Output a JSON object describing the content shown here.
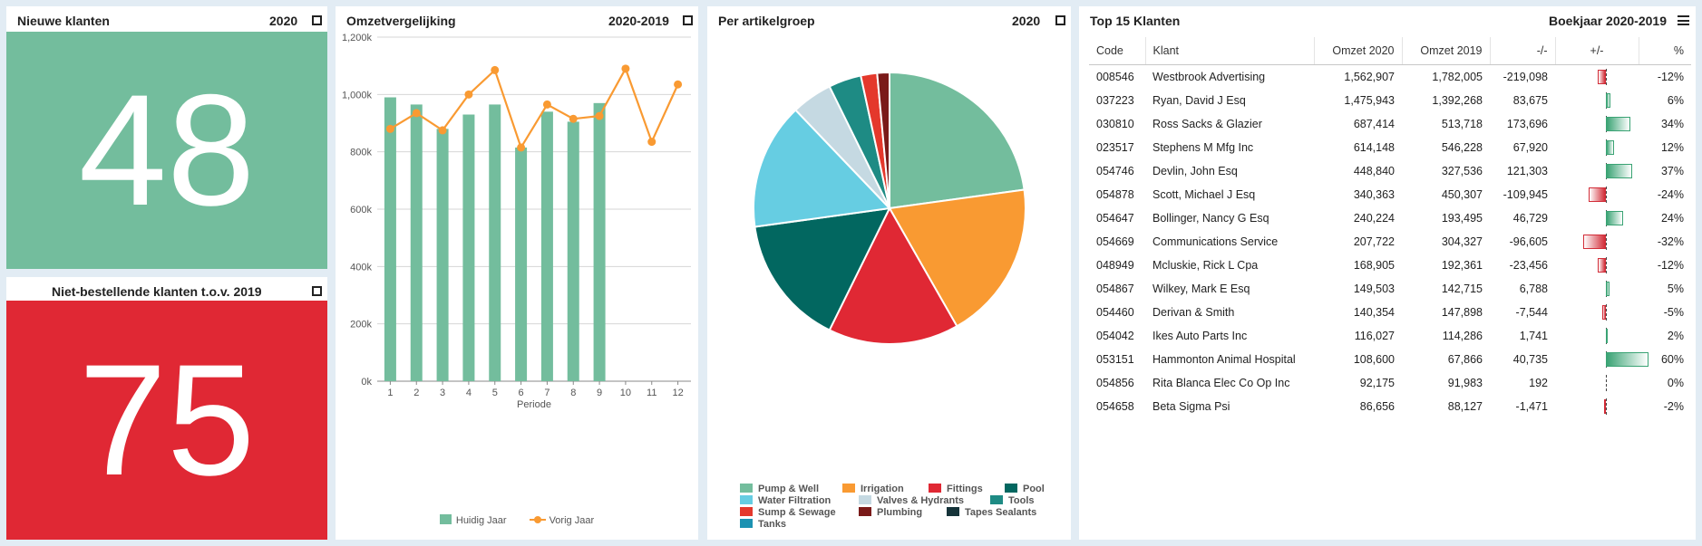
{
  "panel_new": {
    "title": "Nieuwe klanten",
    "year": "2020",
    "value": "48"
  },
  "panel_nonorder": {
    "title": "Niet-bestellende klanten t.o.v. 2019",
    "value": "75"
  },
  "panel_revenue": {
    "title": "Omzetvergelijking",
    "year": "2020-2019",
    "legend_current": "Huidig Jaar",
    "legend_previous": "Vorig Jaar"
  },
  "panel_pie": {
    "title": "Per artikelgroep",
    "year": "2020"
  },
  "panel_top": {
    "title": "Top 15 Klanten",
    "year": "Boekjaar 2020-2019",
    "columns": [
      "Code",
      "Klant",
      "Omzet 2020",
      "Omzet 2019",
      "-/-",
      "+/-",
      "%"
    ],
    "rows": [
      {
        "code": "008546",
        "name": "Westbrook Advertising",
        "o2020": "1,562,907",
        "o2019": "1,782,005",
        "diff": "-219,098",
        "pct": "-12%",
        "pct_value": -12
      },
      {
        "code": "037223",
        "name": "Ryan, David J Esq",
        "o2020": "1,475,943",
        "o2019": "1,392,268",
        "diff": "83,675",
        "pct": "6%",
        "pct_value": 6
      },
      {
        "code": "030810",
        "name": "Ross Sacks & Glazier",
        "o2020": "687,414",
        "o2019": "513,718",
        "diff": "173,696",
        "pct": "34%",
        "pct_value": 34
      },
      {
        "code": "023517",
        "name": "Stephens M Mfg Inc",
        "o2020": "614,148",
        "o2019": "546,228",
        "diff": "67,920",
        "pct": "12%",
        "pct_value": 12
      },
      {
        "code": "054746",
        "name": "Devlin, John Esq",
        "o2020": "448,840",
        "o2019": "327,536",
        "diff": "121,303",
        "pct": "37%",
        "pct_value": 37
      },
      {
        "code": "054878",
        "name": "Scott, Michael J Esq",
        "o2020": "340,363",
        "o2019": "450,307",
        "diff": "-109,945",
        "pct": "-24%",
        "pct_value": -24
      },
      {
        "code": "054647",
        "name": "Bollinger, Nancy G Esq",
        "o2020": "240,224",
        "o2019": "193,495",
        "diff": "46,729",
        "pct": "24%",
        "pct_value": 24
      },
      {
        "code": "054669",
        "name": "Communications Service",
        "o2020": "207,722",
        "o2019": "304,327",
        "diff": "-96,605",
        "pct": "-32%",
        "pct_value": -32
      },
      {
        "code": "048949",
        "name": "Mcluskie, Rick L Cpa",
        "o2020": "168,905",
        "o2019": "192,361",
        "diff": "-23,456",
        "pct": "-12%",
        "pct_value": -12
      },
      {
        "code": "054867",
        "name": "Wilkey, Mark E Esq",
        "o2020": "149,503",
        "o2019": "142,715",
        "diff": "6,788",
        "pct": "5%",
        "pct_value": 5
      },
      {
        "code": "054460",
        "name": "Derivan & Smith",
        "o2020": "140,354",
        "o2019": "147,898",
        "diff": "-7,544",
        "pct": "-5%",
        "pct_value": -5
      },
      {
        "code": "054042",
        "name": "Ikes Auto Parts Inc",
        "o2020": "116,027",
        "o2019": "114,286",
        "diff": "1,741",
        "pct": "2%",
        "pct_value": 2
      },
      {
        "code": "053151",
        "name": "Hammonton Animal Hospital",
        "o2020": "108,600",
        "o2019": "67,866",
        "diff": "40,735",
        "pct": "60%",
        "pct_value": 60
      },
      {
        "code": "054856",
        "name": "Rita Blanca Elec Co Op Inc",
        "o2020": "92,175",
        "o2019": "91,983",
        "diff": "192",
        "pct": "0%",
        "pct_value": 0
      },
      {
        "code": "054658",
        "name": "Beta Sigma Psi",
        "o2020": "86,656",
        "o2019": "88,127",
        "diff": "-1,471",
        "pct": "-2%",
        "pct_value": -2
      }
    ]
  },
  "colors": {
    "green": "#73bd9d",
    "red": "#e02834",
    "orange": "#f99a32",
    "positive": "#3aa374",
    "negative": "#d22d38"
  },
  "chart_data": [
    {
      "type": "bar",
      "xlabel": "Periode",
      "ylim": [
        0,
        1200000
      ],
      "yticks": [
        "0k",
        "200k",
        "400k",
        "600k",
        "800k",
        "1,000k",
        "1,200k"
      ],
      "categories": [
        "1",
        "2",
        "3",
        "4",
        "5",
        "6",
        "7",
        "8",
        "9",
        "10",
        "11",
        "12"
      ],
      "series": [
        {
          "name": "Huidig Jaar",
          "kind": "bar",
          "color": "#73bd9d",
          "values": [
            990000,
            965000,
            880000,
            930000,
            965000,
            815000,
            940000,
            905000,
            970000,
            null,
            null,
            null
          ]
        },
        {
          "name": "Vorig Jaar",
          "kind": "line",
          "color": "#f99a32",
          "values": [
            880000,
            935000,
            875000,
            1000000,
            1085000,
            815000,
            965000,
            915000,
            925000,
            1090000,
            835000,
            1035000
          ]
        }
      ],
      "grid": true,
      "legend": "bottom"
    },
    {
      "type": "pie",
      "labels": [
        "Pump & Well",
        "Irrigation",
        "Fittings",
        "Pool",
        "Water Filtration",
        "Valves & Hydrants",
        "Tools",
        "Sump & Sewage",
        "Plumbing",
        "Tapes Sealants",
        "Tanks"
      ],
      "values": [
        23.5,
        19.5,
        16,
        16,
        15.5,
        5,
        4,
        2,
        1.5,
        0,
        0
      ],
      "colors": [
        "#73bd9d",
        "#f99a32",
        "#e02834",
        "#026760",
        "#66cde2",
        "#c5d9e2",
        "#1e8b84",
        "#e4382c",
        "#7a1a19",
        "#16343a",
        "#1c92b2"
      ],
      "legend": "bottom"
    }
  ]
}
